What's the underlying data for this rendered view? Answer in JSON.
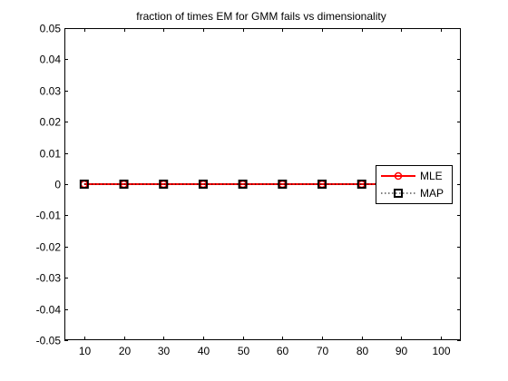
{
  "chart_data": {
    "type": "line",
    "title": "fraction of times EM for GMM fails vs dimensionality",
    "xlabel": "",
    "ylabel": "",
    "xlim": [
      5,
      105
    ],
    "ylim": [
      -0.05,
      0.05
    ],
    "x_ticks": [
      10,
      20,
      30,
      40,
      50,
      60,
      70,
      80,
      90,
      100
    ],
    "y_ticks": [
      -0.05,
      -0.04,
      -0.03,
      -0.02,
      -0.01,
      0,
      0.01,
      0.02,
      0.03,
      0.04,
      0.05
    ],
    "x_tick_labels": [
      "10",
      "20",
      "30",
      "40",
      "50",
      "60",
      "70",
      "80",
      "90",
      "100"
    ],
    "y_tick_labels": [
      "-0.05",
      "-0.04",
      "-0.03",
      "-0.02",
      "-0.01",
      "0",
      "0.01",
      "0.02",
      "0.03",
      "0.04",
      "0.05"
    ],
    "x": [
      10,
      20,
      30,
      40,
      50,
      60,
      70,
      80,
      90,
      100
    ],
    "series": [
      {
        "name": "MLE",
        "values": [
          0,
          0,
          0,
          0,
          0,
          0,
          0,
          0,
          0,
          0
        ],
        "color": "#ff0000",
        "marker": "circle",
        "line_style": "solid"
      },
      {
        "name": "MAP",
        "values": [
          0,
          0,
          0,
          0,
          0,
          0,
          0,
          0,
          0,
          0
        ],
        "color": "#000000",
        "marker": "square",
        "line_style": "dotted"
      }
    ],
    "grid": false,
    "legend_position": "right"
  }
}
